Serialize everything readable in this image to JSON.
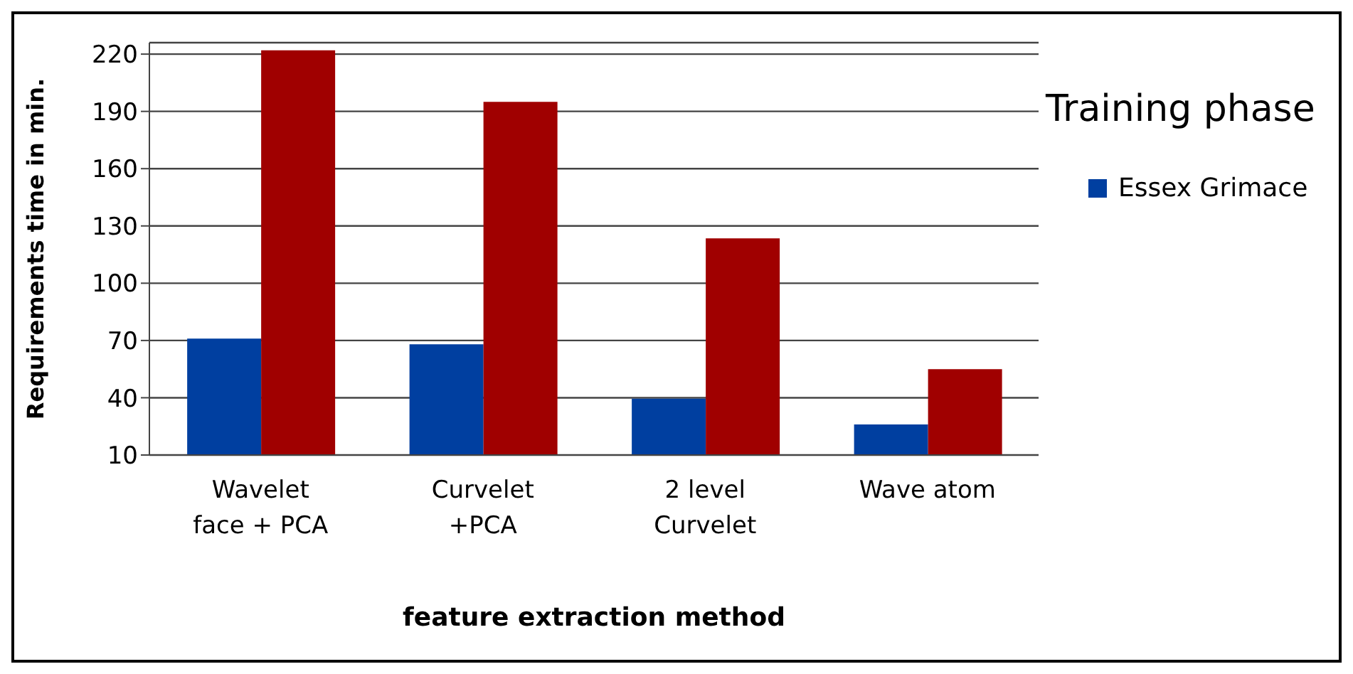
{
  "chart_data": {
    "type": "bar",
    "xlabel": "feature extraction method",
    "ylabel": "Requirements  time in min.",
    "legend_title": "Training phase",
    "categories": [
      "Wavelet\nface + PCA",
      "Curvelet\n+PCA",
      "2 level\nCurvelet",
      "Wave atom"
    ],
    "series": [
      {
        "name": "Essex Grimace",
        "color": "#003fa0",
        "values": [
          71,
          68,
          39.5,
          26
        ]
      },
      {
        "color": "#a00000",
        "values": [
          222,
          195,
          123.5,
          55
        ]
      }
    ],
    "ylim": [
      10,
      226
    ],
    "yticks": [
      10,
      40,
      70,
      100,
      130,
      160,
      190,
      220
    ],
    "grid": "y",
    "legend": "right"
  }
}
